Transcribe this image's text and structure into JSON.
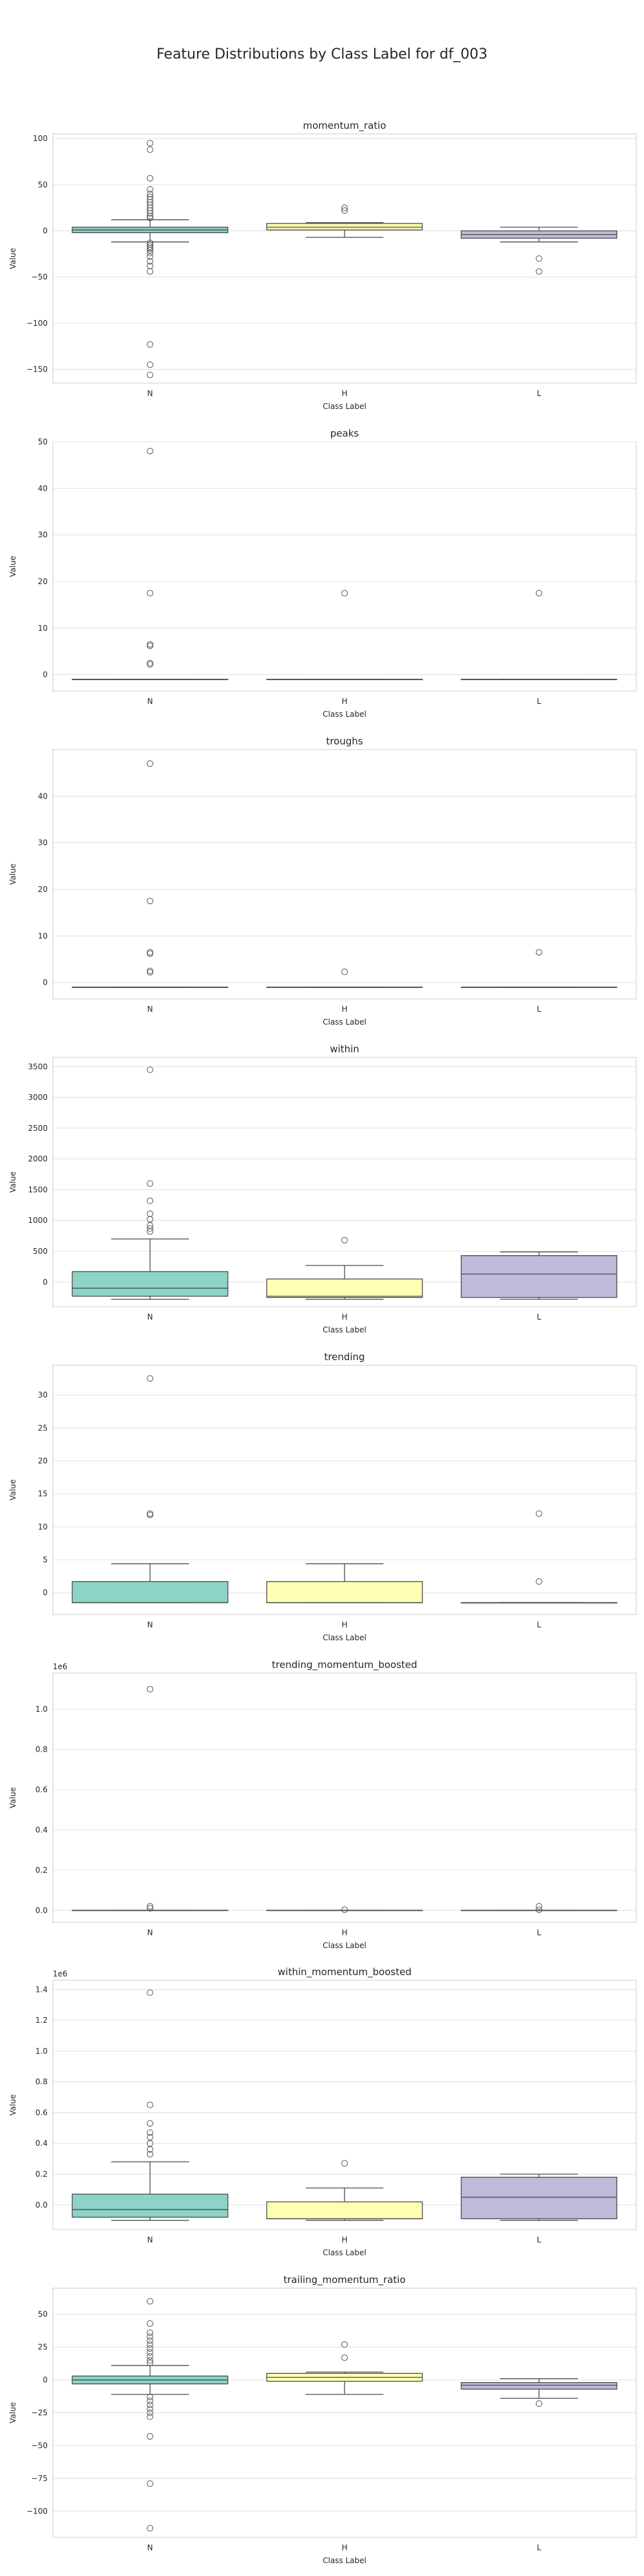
{
  "suptitle": "Feature Distributions by Class Label for df_003",
  "colors": {
    "N": "#8dd3c7",
    "H": "#ffffb3",
    "L": "#bebada"
  },
  "chart_data": [
    {
      "type": "box",
      "title": "momentum_ratio",
      "xlabel": "Class Label",
      "ylabel": "Value",
      "categories": [
        "N",
        "H",
        "L"
      ],
      "ylim": [
        -165,
        105
      ],
      "yticks": [
        -150,
        -100,
        -50,
        0,
        50,
        100
      ],
      "offset_label": "",
      "boxes": [
        {
          "category": "N",
          "whislo": -12,
          "q1": -2,
          "med": 1,
          "q3": 4,
          "whishi": 12,
          "fliers": [
            95,
            88,
            57,
            45,
            40,
            37,
            34,
            31,
            28,
            25,
            22,
            19,
            16,
            14,
            -13,
            -15,
            -17,
            -19,
            -21,
            -24,
            -28,
            -33,
            -38,
            -44,
            -123,
            -145,
            -156
          ]
        },
        {
          "category": "H",
          "whislo": -7,
          "q1": 1,
          "med": 4,
          "q3": 8,
          "whishi": 9,
          "fliers": [
            22,
            25
          ]
        },
        {
          "category": "L",
          "whislo": -12,
          "q1": -8,
          "med": -4,
          "q3": 0,
          "whishi": 4,
          "fliers": [
            -30,
            -44
          ]
        }
      ]
    },
    {
      "type": "box",
      "title": "peaks",
      "xlabel": "Class Label",
      "ylabel": "Value",
      "categories": [
        "N",
        "H",
        "L"
      ],
      "ylim": [
        -3.5,
        50
      ],
      "yticks": [
        0,
        10,
        20,
        30,
        40,
        50
      ],
      "offset_label": "",
      "boxes": [
        {
          "category": "N",
          "whislo": -1,
          "q1": -1,
          "med": -1,
          "q3": -1,
          "whishi": -1,
          "fliers": [
            48,
            17.5,
            6.5,
            6.2,
            2.5,
            2.2
          ]
        },
        {
          "category": "H",
          "whislo": -1,
          "q1": -1,
          "med": -1,
          "q3": -1,
          "whishi": -1,
          "fliers": [
            17.5
          ]
        },
        {
          "category": "L",
          "whislo": -1,
          "q1": -1,
          "med": -1,
          "q3": -1,
          "whishi": -1,
          "fliers": [
            17.5
          ]
        }
      ]
    },
    {
      "type": "box",
      "title": "troughs",
      "xlabel": "Class Label",
      "ylabel": "Value",
      "categories": [
        "N",
        "H",
        "L"
      ],
      "ylim": [
        -3.5,
        50
      ],
      "yticks": [
        0,
        10,
        20,
        30,
        40
      ],
      "offset_label": "",
      "boxes": [
        {
          "category": "N",
          "whislo": -1,
          "q1": -1,
          "med": -1,
          "q3": -1,
          "whishi": -1,
          "fliers": [
            47,
            17.5,
            6.5,
            6.2,
            2.5,
            2.2
          ]
        },
        {
          "category": "H",
          "whislo": -1,
          "q1": -1,
          "med": -1,
          "q3": -1,
          "whishi": -1,
          "fliers": [
            2.3
          ]
        },
        {
          "category": "L",
          "whislo": -1,
          "q1": -1,
          "med": -1,
          "q3": -1,
          "whishi": -1,
          "fliers": [
            6.5
          ]
        }
      ]
    },
    {
      "type": "box",
      "title": "within",
      "xlabel": "Class Label",
      "ylabel": "Value",
      "categories": [
        "N",
        "H",
        "L"
      ],
      "ylim": [
        -400,
        3650
      ],
      "yticks": [
        0,
        500,
        1000,
        1500,
        2000,
        2500,
        3000,
        3500
      ],
      "offset_label": "",
      "boxes": [
        {
          "category": "N",
          "whislo": -280,
          "q1": -230,
          "med": -100,
          "q3": 170,
          "whishi": 700,
          "fliers": [
            3450,
            1600,
            1320,
            1110,
            1020,
            920,
            870,
            820
          ]
        },
        {
          "category": "H",
          "whislo": -280,
          "q1": -250,
          "med": -230,
          "q3": 50,
          "whishi": 270,
          "fliers": [
            680
          ]
        },
        {
          "category": "L",
          "whislo": -280,
          "q1": -250,
          "med": 130,
          "q3": 430,
          "whishi": 490,
          "fliers": []
        }
      ]
    },
    {
      "type": "box",
      "title": "trending",
      "xlabel": "Class Label",
      "ylabel": "Value",
      "categories": [
        "N",
        "H",
        "L"
      ],
      "ylim": [
        -3.3,
        34.5
      ],
      "yticks": [
        0,
        5,
        10,
        15,
        20,
        25,
        30
      ],
      "offset_label": "",
      "boxes": [
        {
          "category": "N",
          "whislo": -1.5,
          "q1": -1.5,
          "med": -1.5,
          "q3": 1.7,
          "whishi": 4.4,
          "fliers": [
            32.5,
            12.0,
            11.8
          ]
        },
        {
          "category": "H",
          "whislo": -1.5,
          "q1": -1.5,
          "med": -1.5,
          "q3": 1.7,
          "whishi": 4.4,
          "fliers": []
        },
        {
          "category": "L",
          "whislo": -1.5,
          "q1": -1.5,
          "med": -1.5,
          "q3": -1.5,
          "whishi": -1.5,
          "fliers": [
            12.0,
            1.7
          ]
        }
      ]
    },
    {
      "type": "box",
      "title": "trending_momentum_boosted",
      "xlabel": "Class Label",
      "ylabel": "Value",
      "categories": [
        "N",
        "H",
        "L"
      ],
      "ylim": [
        -0.06,
        1.18
      ],
      "yticks": [
        0.0,
        0.2,
        0.4,
        0.6,
        0.8,
        1.0
      ],
      "tick_decimals": 1,
      "offset_label": "1e6",
      "boxes": [
        {
          "category": "N",
          "whislo": 0,
          "q1": 0,
          "med": 0,
          "q3": 0,
          "whishi": 0,
          "fliers": [
            1.1,
            0.02,
            0.01
          ]
        },
        {
          "category": "H",
          "whislo": 0,
          "q1": 0,
          "med": 0,
          "q3": 0,
          "whishi": 0,
          "fliers": [
            0.003
          ]
        },
        {
          "category": "L",
          "whislo": 0,
          "q1": 0,
          "med": 0,
          "q3": 0,
          "whishi": 0,
          "fliers": [
            0.02,
            0.003
          ]
        }
      ]
    },
    {
      "type": "box",
      "title": "within_momentum_boosted",
      "xlabel": "Class Label",
      "ylabel": "Value",
      "categories": [
        "N",
        "H",
        "L"
      ],
      "ylim": [
        -0.16,
        1.46
      ],
      "yticks": [
        0.0,
        0.2,
        0.4,
        0.6,
        0.8,
        1.0,
        1.2,
        1.4
      ],
      "tick_decimals": 1,
      "offset_label": "1e6",
      "boxes": [
        {
          "category": "N",
          "whislo": -0.1,
          "q1": -0.08,
          "med": -0.03,
          "q3": 0.07,
          "whishi": 0.28,
          "fliers": [
            1.38,
            0.65,
            0.53,
            0.47,
            0.44,
            0.4,
            0.36,
            0.33
          ]
        },
        {
          "category": "H",
          "whislo": -0.1,
          "q1": -0.09,
          "med": -0.09,
          "q3": 0.02,
          "whishi": 0.11,
          "fliers": [
            0.27
          ]
        },
        {
          "category": "L",
          "whislo": -0.1,
          "q1": -0.09,
          "med": 0.05,
          "q3": 0.18,
          "whishi": 0.2,
          "fliers": []
        }
      ]
    },
    {
      "type": "box",
      "title": "trailing_momentum_ratio",
      "xlabel": "Class Label",
      "ylabel": "Value",
      "categories": [
        "N",
        "H",
        "L"
      ],
      "ylim": [
        -120,
        70
      ],
      "yticks": [
        -100,
        -75,
        -50,
        -25,
        0,
        25,
        50
      ],
      "offset_label": "",
      "boxes": [
        {
          "category": "N",
          "whislo": -11,
          "q1": -3,
          "med": 0,
          "q3": 3,
          "whishi": 11,
          "fliers": [
            60,
            43,
            36,
            33,
            30,
            27,
            24,
            21,
            18,
            15,
            13,
            -13,
            -16,
            -19,
            -22,
            -25,
            -28,
            -43,
            -79,
            -113
          ]
        },
        {
          "category": "H",
          "whislo": -11,
          "q1": -1,
          "med": 2,
          "q3": 5,
          "whishi": 6,
          "fliers": [
            27,
            17
          ]
        },
        {
          "category": "L",
          "whislo": -14,
          "q1": -7,
          "med": -4,
          "q3": -2,
          "whishi": 1,
          "fliers": [
            -18
          ]
        }
      ]
    }
  ]
}
